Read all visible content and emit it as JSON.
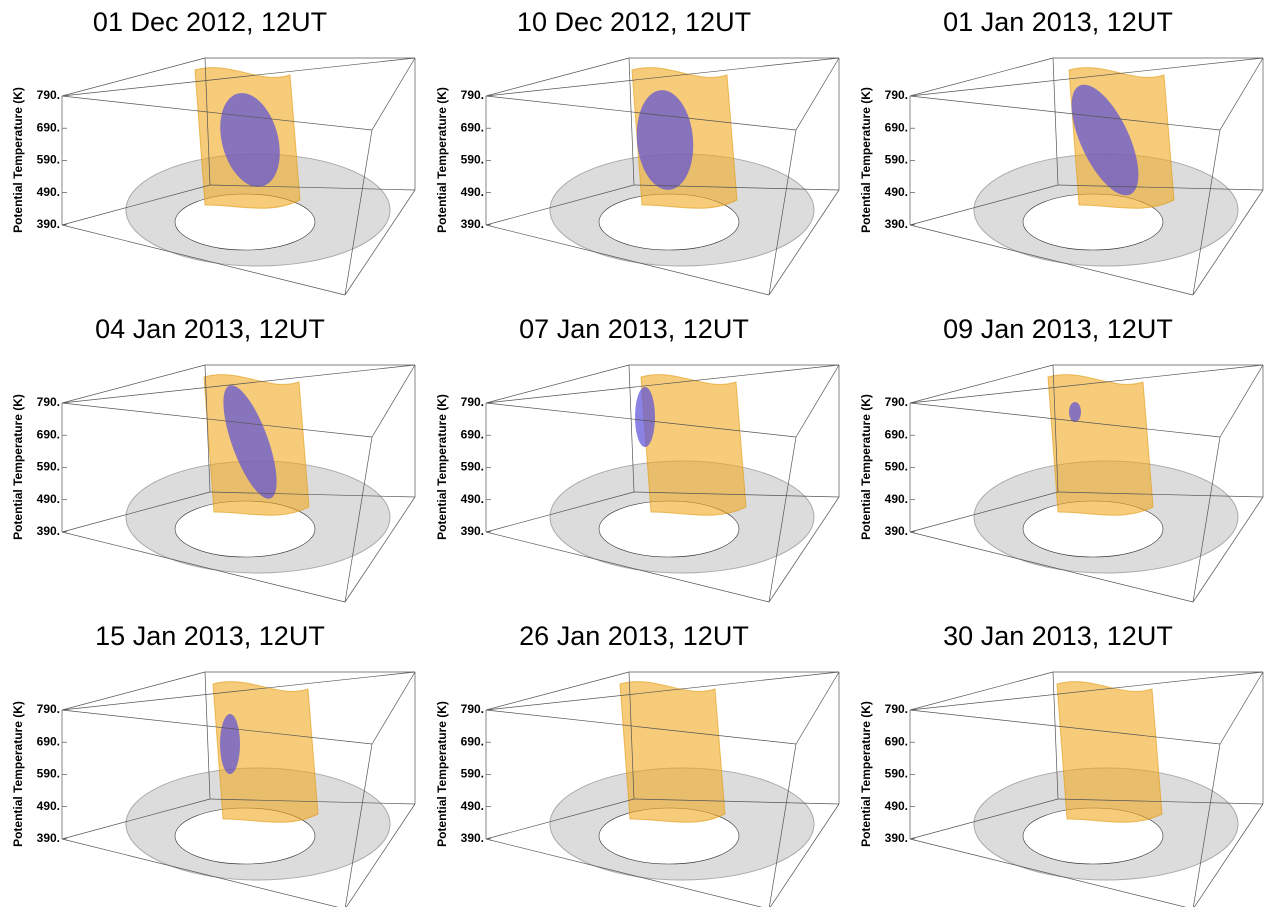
{
  "panels": [
    {
      "title": "01 Dec 2012, 12UT",
      "axis_label": "Potential Temperature (K)",
      "ticks": [
        "790.",
        "690.",
        "590.",
        "490.",
        "390."
      ]
    },
    {
      "title": "10 Dec 2012, 12UT",
      "axis_label": "Potential Temperature (K)",
      "ticks": [
        "790.",
        "690.",
        "590.",
        "490.",
        "390."
      ]
    },
    {
      "title": "01 Jan 2013, 12UT",
      "axis_label": "Potential Temperature (K)",
      "ticks": [
        "790.",
        "690.",
        "590.",
        "490.",
        "390."
      ]
    },
    {
      "title": "04 Jan 2013, 12UT",
      "axis_label": "Potential Temperature (K)",
      "ticks": [
        "790.",
        "690.",
        "590.",
        "490.",
        "390."
      ]
    },
    {
      "title": "07 Jan 2013, 12UT",
      "axis_label": "Potential Temperature (K)",
      "ticks": [
        "790.",
        "690.",
        "590.",
        "490.",
        "390."
      ]
    },
    {
      "title": "09 Jan 2013, 12UT",
      "axis_label": "Potential Temperature (K)",
      "ticks": [
        "790.",
        "690.",
        "590.",
        "490.",
        "390."
      ]
    },
    {
      "title": "15 Jan 2013, 12UT",
      "axis_label": "Potential Temperature (K)",
      "ticks": [
        "790.",
        "690.",
        "590.",
        "490.",
        "390."
      ]
    },
    {
      "title": "26 Jan 2013, 12UT",
      "axis_label": "Potential Temperature (K)",
      "ticks": [
        "790.",
        "690.",
        "590.",
        "490.",
        "390."
      ]
    },
    {
      "title": "30 Jan 2013, 12UT",
      "axis_label": "Potential Temperature (K)",
      "ticks": [
        "790.",
        "690.",
        "590.",
        "490.",
        "390."
      ]
    }
  ]
}
